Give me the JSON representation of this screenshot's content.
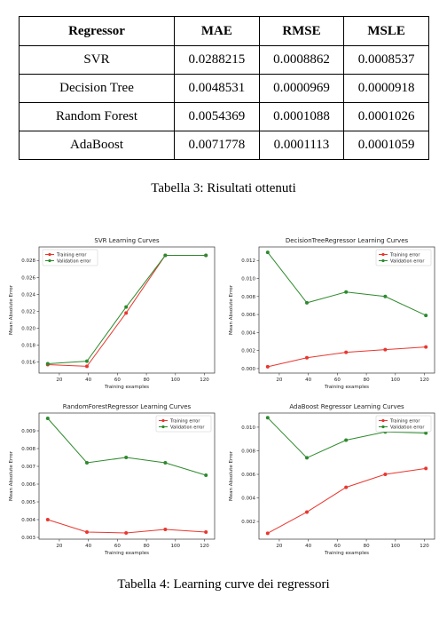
{
  "table": {
    "headers": [
      "Regressor",
      "MAE",
      "RMSE",
      "MSLE"
    ],
    "rows": [
      [
        "SVR",
        "0.0288215",
        "0.0008862",
        "0.0008537"
      ],
      [
        "Decision Tree",
        "0.0048531",
        "0.0000969",
        "0.0000918"
      ],
      [
        "Random Forest",
        "0.0054369",
        "0.0001088",
        "0.0001026"
      ],
      [
        "AdaBoost",
        "0.0071778",
        "0.0001113",
        "0.0001059"
      ]
    ]
  },
  "captions": {
    "table": "Tabella 3: Risultati ottenuti",
    "figure": "Tabella 4: Learning curve dei regressori"
  },
  "chart_data": [
    {
      "type": "line",
      "title": "SVR Learning Curves",
      "xlabel": "Training examples",
      "ylabel": "Mean Absolute Error",
      "x": [
        12,
        39,
        66,
        93,
        121
      ],
      "series": [
        {
          "name": "Training error",
          "color": "#e8372f",
          "values": [
            0.0157,
            0.0155,
            0.0218,
            0.0286,
            0.0286
          ]
        },
        {
          "name": "Validation error",
          "color": "#2d8a2d",
          "values": [
            0.0158,
            0.0161,
            0.0225,
            0.0286,
            0.0286
          ]
        }
      ],
      "xlim": [
        6,
        127
      ],
      "ylim": [
        0.0147,
        0.0296
      ],
      "xticks": [
        20,
        40,
        60,
        80,
        100,
        120
      ],
      "yticks": [
        0.016,
        0.018,
        0.02,
        0.022,
        0.024,
        0.026,
        0.028
      ],
      "ytick_labels": [
        "0.016",
        "0.018",
        "0.020",
        "0.022",
        "0.024",
        "0.026",
        "0.028"
      ],
      "legend": "top-left",
      "grid": false
    },
    {
      "type": "line",
      "title": "DecisionTreeRegressor Learning Curves",
      "xlabel": "Training examples",
      "ylabel": "Mean Absolute Error",
      "x": [
        12,
        39,
        66,
        93,
        121
      ],
      "series": [
        {
          "name": "Training error",
          "color": "#e8372f",
          "values": [
            0.0002,
            0.0012,
            0.0018,
            0.0021,
            0.0024
          ]
        },
        {
          "name": "Validation error",
          "color": "#2d8a2d",
          "values": [
            0.0129,
            0.0073,
            0.0085,
            0.008,
            0.0059
          ]
        }
      ],
      "xlim": [
        6,
        127
      ],
      "ylim": [
        -0.0005,
        0.0135
      ],
      "xticks": [
        20,
        40,
        60,
        80,
        100,
        120
      ],
      "yticks": [
        0.0,
        0.002,
        0.004,
        0.006,
        0.008,
        0.01,
        0.012
      ],
      "ytick_labels": [
        "0.000",
        "0.002",
        "0.004",
        "0.006",
        "0.008",
        "0.010",
        "0.012"
      ],
      "legend": "top-right",
      "grid": false
    },
    {
      "type": "line",
      "title": "RandomForestRegressor Learning Curves",
      "xlabel": "Training examples",
      "ylabel": "Mean Absolute Error",
      "x": [
        12,
        39,
        66,
        93,
        121
      ],
      "series": [
        {
          "name": "Training error",
          "color": "#e8372f",
          "values": [
            0.004,
            0.0033,
            0.00325,
            0.00345,
            0.0033
          ]
        },
        {
          "name": "Validation error",
          "color": "#2d8a2d",
          "values": [
            0.0097,
            0.0072,
            0.0075,
            0.0072,
            0.0065
          ]
        }
      ],
      "xlim": [
        6,
        127
      ],
      "ylim": [
        0.0029,
        0.01
      ],
      "xticks": [
        20,
        40,
        60,
        80,
        100,
        120
      ],
      "yticks": [
        0.003,
        0.004,
        0.005,
        0.006,
        0.007,
        0.008,
        0.009
      ],
      "ytick_labels": [
        "0.003",
        "0.004",
        "0.005",
        "0.006",
        "0.007",
        "0.008",
        "0.009"
      ],
      "legend": "top-right",
      "grid": false
    },
    {
      "type": "line",
      "title": "AdaBoost Regressor Learning Curves",
      "xlabel": "Training examples",
      "ylabel": "Mean Absolute Error",
      "x": [
        12,
        39,
        66,
        93,
        121
      ],
      "series": [
        {
          "name": "Training error",
          "color": "#e8372f",
          "values": [
            0.001,
            0.0028,
            0.0049,
            0.006,
            0.0065
          ]
        },
        {
          "name": "Validation error",
          "color": "#2d8a2d",
          "values": [
            0.0108,
            0.0074,
            0.0089,
            0.0096,
            0.0095
          ]
        }
      ],
      "xlim": [
        6,
        127
      ],
      "ylim": [
        0.0005,
        0.0112
      ],
      "xticks": [
        20,
        40,
        60,
        80,
        100,
        120
      ],
      "yticks": [
        0.002,
        0.004,
        0.006,
        0.008,
        0.01
      ],
      "ytick_labels": [
        "0.002",
        "0.004",
        "0.006",
        "0.008",
        "0.010"
      ],
      "legend": "top-right",
      "grid": false
    }
  ]
}
